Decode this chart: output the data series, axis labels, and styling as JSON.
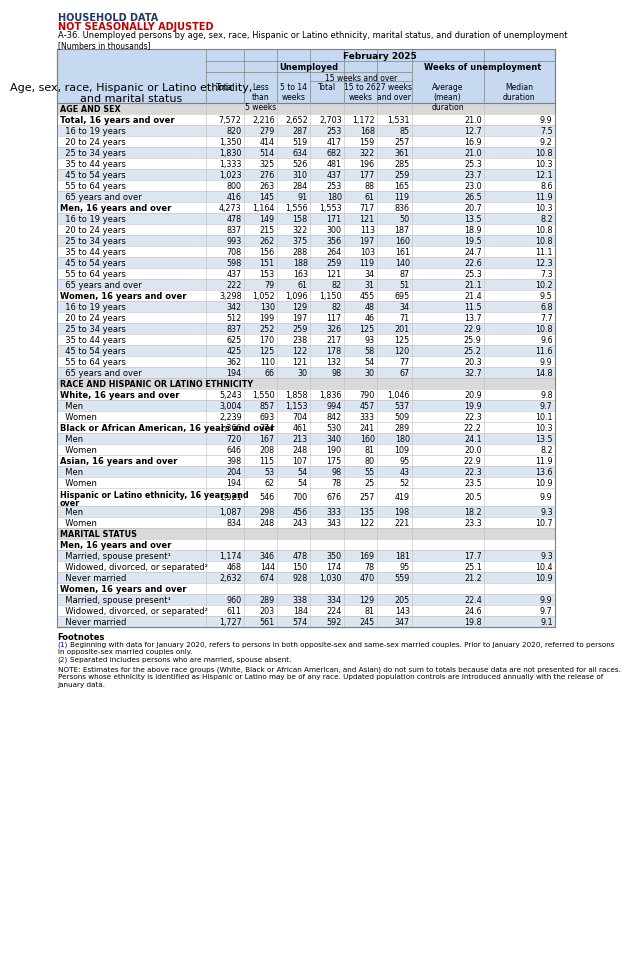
{
  "title1": "HOUSEHOLD DATA",
  "title2": "NOT SEASONALLY ADJUSTED",
  "title3": "A-36. Unemployed persons by age, sex, race, Hispanic or Latino ethnicity, marital status, and duration of unemployment",
  "title4": "[Numbers in thousands]",
  "col_header_top": "February 2025",
  "col_header_mid1": "Unemployed",
  "col_header_mid2": "Weeks of unemployment",
  "col_header_sub2": "15 weeks and over",
  "row_header_col": "Age, sex, race, Hispanic or Latino ethnicity,\nand marital status",
  "sections": [
    {
      "label": "AGE AND SEX",
      "is_section": true,
      "rows": [
        {
          "label": "Total, 16 years and over",
          "bold": true,
          "indent": 0,
          "two_line": false,
          "values": [
            "7,572",
            "2,216",
            "2,652",
            "2,703",
            "1,172",
            "1,531",
            "21.0",
            "9.9"
          ]
        },
        {
          "label": "  16 to 19 years",
          "bold": false,
          "indent": 1,
          "two_line": false,
          "values": [
            "820",
            "279",
            "287",
            "253",
            "168",
            "85",
            "12.7",
            "7.5"
          ]
        },
        {
          "label": "  20 to 24 years",
          "bold": false,
          "indent": 1,
          "two_line": false,
          "values": [
            "1,350",
            "414",
            "519",
            "417",
            "159",
            "257",
            "16.9",
            "9.2"
          ]
        },
        {
          "label": "  25 to 34 years",
          "bold": false,
          "indent": 1,
          "two_line": false,
          "values": [
            "1,830",
            "514",
            "634",
            "682",
            "322",
            "361",
            "21.0",
            "10.8"
          ]
        },
        {
          "label": "  35 to 44 years",
          "bold": false,
          "indent": 1,
          "two_line": false,
          "values": [
            "1,333",
            "325",
            "526",
            "481",
            "196",
            "285",
            "25.3",
            "10.3"
          ]
        },
        {
          "label": "  45 to 54 years",
          "bold": false,
          "indent": 1,
          "two_line": false,
          "values": [
            "1,023",
            "276",
            "310",
            "437",
            "177",
            "259",
            "23.7",
            "12.1"
          ]
        },
        {
          "label": "  55 to 64 years",
          "bold": false,
          "indent": 1,
          "two_line": false,
          "values": [
            "800",
            "263",
            "284",
            "253",
            "88",
            "165",
            "23.0",
            "8.6"
          ]
        },
        {
          "label": "  65 years and over",
          "bold": false,
          "indent": 1,
          "two_line": false,
          "values": [
            "416",
            "145",
            "91",
            "180",
            "61",
            "119",
            "26.5",
            "11.9"
          ]
        }
      ]
    },
    {
      "label": "",
      "is_section": false,
      "rows": [
        {
          "label": "Men, 16 years and over",
          "bold": true,
          "indent": 0,
          "two_line": false,
          "values": [
            "4,273",
            "1,164",
            "1,556",
            "1,553",
            "717",
            "836",
            "20.7",
            "10.3"
          ]
        },
        {
          "label": "  16 to 19 years",
          "bold": false,
          "indent": 1,
          "two_line": false,
          "values": [
            "478",
            "149",
            "158",
            "171",
            "121",
            "50",
            "13.5",
            "8.2"
          ]
        },
        {
          "label": "  20 to 24 years",
          "bold": false,
          "indent": 1,
          "two_line": false,
          "values": [
            "837",
            "215",
            "322",
            "300",
            "113",
            "187",
            "18.9",
            "10.8"
          ]
        },
        {
          "label": "  25 to 34 years",
          "bold": false,
          "indent": 1,
          "two_line": false,
          "values": [
            "993",
            "262",
            "375",
            "356",
            "197",
            "160",
            "19.5",
            "10.8"
          ]
        },
        {
          "label": "  35 to 44 years",
          "bold": false,
          "indent": 1,
          "two_line": false,
          "values": [
            "708",
            "156",
            "288",
            "264",
            "103",
            "161",
            "24.7",
            "11.1"
          ]
        },
        {
          "label": "  45 to 54 years",
          "bold": false,
          "indent": 1,
          "two_line": false,
          "values": [
            "598",
            "151",
            "188",
            "259",
            "119",
            "140",
            "22.6",
            "12.3"
          ]
        },
        {
          "label": "  55 to 64 years",
          "bold": false,
          "indent": 1,
          "two_line": false,
          "values": [
            "437",
            "153",
            "163",
            "121",
            "34",
            "87",
            "25.3",
            "7.3"
          ]
        },
        {
          "label": "  65 years and over",
          "bold": false,
          "indent": 1,
          "two_line": false,
          "values": [
            "222",
            "79",
            "61",
            "82",
            "31",
            "51",
            "21.1",
            "10.2"
          ]
        }
      ]
    },
    {
      "label": "",
      "is_section": false,
      "rows": [
        {
          "label": "Women, 16 years and over",
          "bold": true,
          "indent": 0,
          "two_line": false,
          "values": [
            "3,298",
            "1,052",
            "1,096",
            "1,150",
            "455",
            "695",
            "21.4",
            "9.5"
          ]
        },
        {
          "label": "  16 to 19 years",
          "bold": false,
          "indent": 1,
          "two_line": false,
          "values": [
            "342",
            "130",
            "129",
            "82",
            "48",
            "34",
            "11.5",
            "6.8"
          ]
        },
        {
          "label": "  20 to 24 years",
          "bold": false,
          "indent": 1,
          "two_line": false,
          "values": [
            "512",
            "199",
            "197",
            "117",
            "46",
            "71",
            "13.7",
            "7.7"
          ]
        },
        {
          "label": "  25 to 34 years",
          "bold": false,
          "indent": 1,
          "two_line": false,
          "values": [
            "837",
            "252",
            "259",
            "326",
            "125",
            "201",
            "22.9",
            "10.8"
          ]
        },
        {
          "label": "  35 to 44 years",
          "bold": false,
          "indent": 1,
          "two_line": false,
          "values": [
            "625",
            "170",
            "238",
            "217",
            "93",
            "125",
            "25.9",
            "9.6"
          ]
        },
        {
          "label": "  45 to 54 years",
          "bold": false,
          "indent": 1,
          "two_line": false,
          "values": [
            "425",
            "125",
            "122",
            "178",
            "58",
            "120",
            "25.2",
            "11.6"
          ]
        },
        {
          "label": "  55 to 64 years",
          "bold": false,
          "indent": 1,
          "two_line": false,
          "values": [
            "362",
            "110",
            "121",
            "132",
            "54",
            "77",
            "20.3",
            "9.9"
          ]
        },
        {
          "label": "  65 years and over",
          "bold": false,
          "indent": 1,
          "two_line": false,
          "values": [
            "194",
            "66",
            "30",
            "98",
            "30",
            "67",
            "32.7",
            "14.8"
          ]
        }
      ]
    },
    {
      "label": "RACE AND HISPANIC OR LATINO ETHNICITY",
      "is_section": true,
      "rows": [
        {
          "label": "White, 16 years and over",
          "bold": true,
          "indent": 0,
          "two_line": false,
          "values": [
            "5,243",
            "1,550",
            "1,858",
            "1,836",
            "790",
            "1,046",
            "20.9",
            "9.8"
          ]
        },
        {
          "label": "  Men",
          "bold": false,
          "indent": 1,
          "two_line": false,
          "values": [
            "3,004",
            "857",
            "1,153",
            "994",
            "457",
            "537",
            "19.9",
            "9.7"
          ]
        },
        {
          "label": "  Women",
          "bold": false,
          "indent": 1,
          "two_line": false,
          "values": [
            "2,239",
            "693",
            "704",
            "842",
            "333",
            "509",
            "22.3",
            "10.1"
          ]
        },
        {
          "label": "Black or African American, 16 years and over",
          "bold": true,
          "indent": 0,
          "two_line": false,
          "values": [
            "1,366",
            "374",
            "461",
            "530",
            "241",
            "289",
            "22.2",
            "10.3"
          ]
        },
        {
          "label": "  Men",
          "bold": false,
          "indent": 1,
          "two_line": false,
          "values": [
            "720",
            "167",
            "213",
            "340",
            "160",
            "180",
            "24.1",
            "13.5"
          ]
        },
        {
          "label": "  Women",
          "bold": false,
          "indent": 1,
          "two_line": false,
          "values": [
            "646",
            "208",
            "248",
            "190",
            "81",
            "109",
            "20.0",
            "8.2"
          ]
        },
        {
          "label": "Asian, 16 years and over",
          "bold": true,
          "indent": 0,
          "two_line": false,
          "values": [
            "398",
            "115",
            "107",
            "175",
            "80",
            "95",
            "22.9",
            "11.9"
          ]
        },
        {
          "label": "  Men",
          "bold": false,
          "indent": 1,
          "two_line": false,
          "values": [
            "204",
            "53",
            "54",
            "98",
            "55",
            "43",
            "22.3",
            "13.6"
          ]
        },
        {
          "label": "  Women",
          "bold": false,
          "indent": 1,
          "two_line": false,
          "values": [
            "194",
            "62",
            "54",
            "78",
            "25",
            "52",
            "23.5",
            "10.9"
          ]
        },
        {
          "label": "Hispanic or Latino ethnicity, 16 years and over",
          "bold": true,
          "indent": 0,
          "two_line": true,
          "values": [
            "1,921",
            "546",
            "700",
            "676",
            "257",
            "419",
            "20.5",
            "9.9"
          ]
        },
        {
          "label": "  Men",
          "bold": false,
          "indent": 1,
          "two_line": false,
          "values": [
            "1,087",
            "298",
            "456",
            "333",
            "135",
            "198",
            "18.2",
            "9.3"
          ]
        },
        {
          "label": "  Women",
          "bold": false,
          "indent": 1,
          "two_line": false,
          "values": [
            "834",
            "248",
            "243",
            "343",
            "122",
            "221",
            "23.3",
            "10.7"
          ]
        }
      ]
    },
    {
      "label": "MARITAL STATUS",
      "is_section": true,
      "rows": [
        {
          "label": "Men, 16 years and over",
          "bold": true,
          "indent": 0,
          "two_line": false,
          "values": [
            "",
            "",
            "",
            "",
            "",
            "",
            "",
            ""
          ]
        },
        {
          "label": "  Married, spouse present¹",
          "bold": false,
          "indent": 1,
          "two_line": false,
          "values": [
            "1,174",
            "346",
            "478",
            "350",
            "169",
            "181",
            "17.7",
            "9.3"
          ]
        },
        {
          "label": "  Widowed, divorced, or separated²",
          "bold": false,
          "indent": 1,
          "two_line": false,
          "values": [
            "468",
            "144",
            "150",
            "174",
            "78",
            "95",
            "25.1",
            "10.4"
          ]
        },
        {
          "label": "  Never married",
          "bold": false,
          "indent": 1,
          "two_line": false,
          "values": [
            "2,632",
            "674",
            "928",
            "1,030",
            "470",
            "559",
            "21.2",
            "10.9"
          ]
        },
        {
          "label": "Women, 16 years and over",
          "bold": true,
          "indent": 0,
          "two_line": false,
          "values": [
            "",
            "",
            "",
            "",
            "",
            "",
            "",
            ""
          ]
        },
        {
          "label": "  Married, spouse present¹",
          "bold": false,
          "indent": 1,
          "two_line": false,
          "values": [
            "960",
            "289",
            "338",
            "334",
            "129",
            "205",
            "22.4",
            "9.9"
          ]
        },
        {
          "label": "  Widowed, divorced, or separated²",
          "bold": false,
          "indent": 1,
          "two_line": false,
          "values": [
            "611",
            "203",
            "184",
            "224",
            "81",
            "143",
            "24.6",
            "9.7"
          ]
        },
        {
          "label": "  Never married",
          "bold": false,
          "indent": 1,
          "two_line": false,
          "values": [
            "1,727",
            "561",
            "574",
            "592",
            "245",
            "347",
            "19.8",
            "9.1"
          ]
        }
      ]
    }
  ],
  "footnotes": [
    "(1) Beginning with data for January 2020, refers to persons in both opposite-sex and same-sex married couples. Prior to January 2020, referred to persons\nin opposite-sex married couples only.",
    "(2) Separated includes persons who are married, spouse absent."
  ],
  "note": "NOTE: Estimates for the above race groups (White, Black or African American, and Asian) do not sum to totals because data are not presented for all races.\nPersons whose ethnicity is identified as Hispanic or Latino may be of any race. Updated population controls are introduced annually with the release of\nJanuary data.",
  "bg_header": "#c6d9f1",
  "bg_row_alt": "#dce6f1",
  "bg_white": "#ffffff",
  "bg_section": "#d9d9d9",
  "title_color1": "#1f3864",
  "title_color2": "#c00000",
  "border_color": "#7f7f7f",
  "grid_color": "#bfbfbf"
}
